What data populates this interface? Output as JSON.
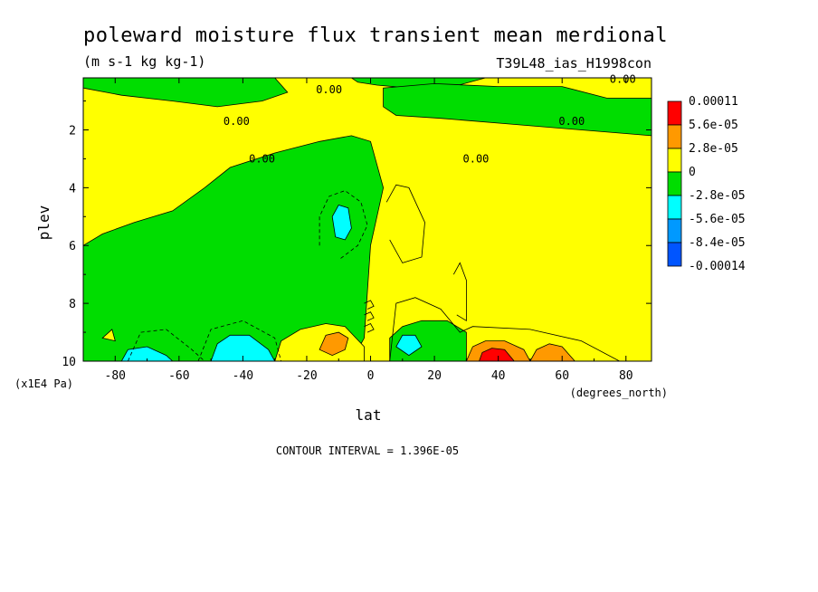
{
  "chart_data": {
    "type": "heatmap",
    "title": "poleward moisture flux transient mean merdional",
    "units": "(m s-1 kg kg-1)",
    "run_label": "T39L48_ias_H1998con",
    "xlabel": "lat",
    "x_unit": "(degrees_north)",
    "ylabel": "plev",
    "y_unit": "(x1E4 Pa)",
    "xlim": [
      -90,
      88
    ],
    "ylim": [
      0.2,
      10
    ],
    "y_inverted": true,
    "x_ticks": [
      -80,
      -60,
      -40,
      -20,
      0,
      20,
      40,
      60,
      80
    ],
    "y_ticks": [
      2,
      4,
      6,
      8,
      10
    ],
    "contour_interval_text": "CONTOUR INTERVAL = 1.396E-05",
    "contour_labels": [
      {
        "text": "0.00",
        "lat": -13,
        "plev": 0.6
      },
      {
        "text": "0.00",
        "lat": -42,
        "plev": 1.7
      },
      {
        "text": "0.00",
        "lat": 63,
        "plev": 1.7
      },
      {
        "text": "0.00",
        "lat": -34,
        "plev": 3.0
      },
      {
        "text": "0.00",
        "lat": 33,
        "plev": 3.0
      },
      {
        "text": "0.00",
        "lat": 79,
        "plev": 0.25
      }
    ],
    "legend": {
      "placement": "right",
      "levels": [
        "0.00011",
        "5.6e-05",
        "2.8e-05",
        "0",
        "-2.8e-05",
        "-5.6e-05",
        "-8.4e-05",
        "-0.00014"
      ],
      "colors": [
        "#ff0000",
        "#ff9900",
        "#ffff00",
        "#00dd00",
        "#00ffff",
        "#0099ff",
        "#0055ff"
      ]
    },
    "regions": [
      {
        "name": "upper-left-negative",
        "color": "#00dd00",
        "pts": [
          [
            -90,
            0.2
          ],
          [
            -30,
            0.2
          ],
          [
            -26,
            0.7
          ],
          [
            -34,
            1.0
          ],
          [
            -48,
            1.2
          ],
          [
            -62,
            1.0
          ],
          [
            -78,
            0.8
          ],
          [
            -90,
            0.55
          ]
        ]
      },
      {
        "name": "upper-center-negative",
        "color": "#00dd00",
        "pts": [
          [
            -6,
            0.2
          ],
          [
            36,
            0.2
          ],
          [
            26,
            0.5
          ],
          [
            12,
            0.55
          ],
          [
            2,
            0.45
          ],
          [
            -4,
            0.35
          ]
        ]
      },
      {
        "name": "upper-right-negative",
        "color": "#00dd00",
        "pts": [
          [
            4,
            1.2
          ],
          [
            4,
            0.55
          ],
          [
            20,
            0.4
          ],
          [
            40,
            0.5
          ],
          [
            60,
            0.5
          ],
          [
            74,
            0.9
          ],
          [
            88,
            0.9
          ],
          [
            88,
            2.2
          ],
          [
            66,
            2.0
          ],
          [
            44,
            1.8
          ],
          [
            22,
            1.6
          ],
          [
            8,
            1.5
          ]
        ]
      },
      {
        "name": "southern-negative",
        "color": "#00dd00",
        "pts": [
          [
            -90,
            6.0
          ],
          [
            -84,
            5.6
          ],
          [
            -74,
            5.2
          ],
          [
            -62,
            4.8
          ],
          [
            -52,
            4.0
          ],
          [
            -44,
            3.3
          ],
          [
            -30,
            2.8
          ],
          [
            -16,
            2.4
          ],
          [
            -6,
            2.2
          ],
          [
            0,
            2.4
          ],
          [
            4,
            4.0
          ],
          [
            0,
            6.0
          ],
          [
            -2,
            9.2
          ],
          [
            -6,
            10
          ],
          [
            -90,
            10
          ]
        ]
      },
      {
        "name": "positive-20S",
        "color": "#ffff00",
        "pts": [
          [
            -30,
            10
          ],
          [
            -28,
            9.3
          ],
          [
            -22,
            8.9
          ],
          [
            -14,
            8.7
          ],
          [
            -8,
            8.8
          ],
          [
            -2,
            9.5
          ],
          [
            -2,
            10
          ]
        ]
      },
      {
        "name": "negative-12N",
        "color": "#00dd00",
        "pts": [
          [
            6,
            10
          ],
          [
            6,
            9.2
          ],
          [
            10,
            8.8
          ],
          [
            16,
            8.6
          ],
          [
            24,
            8.6
          ],
          [
            30,
            9.0
          ],
          [
            30,
            10
          ]
        ]
      },
      {
        "name": "cyan-48S-35S",
        "color": "#00ffff",
        "pts": [
          [
            -50,
            10
          ],
          [
            -48,
            9.4
          ],
          [
            -44,
            9.1
          ],
          [
            -38,
            9.1
          ],
          [
            -32,
            9.6
          ],
          [
            -30,
            10
          ]
        ]
      },
      {
        "name": "cyan-70S",
        "color": "#00ffff",
        "pts": [
          [
            -78,
            10
          ],
          [
            -76,
            9.6
          ],
          [
            -70,
            9.5
          ],
          [
            -64,
            9.8
          ],
          [
            -62,
            10
          ]
        ]
      },
      {
        "name": "cyan-8S-upper",
        "color": "#00ffff",
        "pts": [
          [
            -11,
            5.7
          ],
          [
            -12,
            5.0
          ],
          [
            -10,
            4.6
          ],
          [
            -7,
            4.7
          ],
          [
            -6,
            5.4
          ],
          [
            -8,
            5.8
          ]
        ]
      },
      {
        "name": "cyan-12N-low",
        "color": "#00ffff",
        "pts": [
          [
            8,
            9.5
          ],
          [
            10,
            9.1
          ],
          [
            14,
            9.1
          ],
          [
            16,
            9.5
          ],
          [
            12,
            9.8
          ]
        ]
      },
      {
        "name": "orange-12S",
        "color": "#ff9900",
        "pts": [
          [
            -16,
            9.6
          ],
          [
            -14,
            9.1
          ],
          [
            -10,
            9.0
          ],
          [
            -7,
            9.2
          ],
          [
            -8,
            9.6
          ],
          [
            -12,
            9.8
          ]
        ]
      },
      {
        "name": "orange-38N",
        "color": "#ff9900",
        "pts": [
          [
            30,
            10
          ],
          [
            32,
            9.5
          ],
          [
            36,
            9.3
          ],
          [
            42,
            9.3
          ],
          [
            48,
            9.6
          ],
          [
            50,
            10
          ]
        ]
      },
      {
        "name": "red-38N",
        "color": "#ff0000",
        "pts": [
          [
            34,
            10
          ],
          [
            35,
            9.7
          ],
          [
            38,
            9.55
          ],
          [
            42,
            9.6
          ],
          [
            45,
            10
          ]
        ]
      },
      {
        "name": "orange-57N",
        "color": "#ff9900",
        "pts": [
          [
            50,
            10
          ],
          [
            52,
            9.6
          ],
          [
            56,
            9.4
          ],
          [
            60,
            9.5
          ],
          [
            64,
            10
          ]
        ]
      },
      {
        "name": "yellow-84S-bubble",
        "color": "#ffff00",
        "pts": [
          [
            -84,
            9.2
          ],
          [
            -81,
            8.9
          ],
          [
            -80,
            9.3
          ]
        ]
      }
    ],
    "contour_lines": [
      {
        "name": "dashed-8S",
        "dashed": true,
        "pts": [
          [
            -16,
            6.0
          ],
          [
            -16,
            5.0
          ],
          [
            -13,
            4.3
          ],
          [
            -8,
            4.1
          ],
          [
            -3,
            4.5
          ],
          [
            -1,
            5.3
          ],
          [
            -4,
            6.0
          ],
          [
            -10,
            6.5
          ]
        ]
      },
      {
        "name": "solid-10N",
        "dashed": false,
        "pts": [
          [
            5,
            4.5
          ],
          [
            8,
            3.9
          ],
          [
            12,
            4.0
          ],
          [
            17,
            5.2
          ],
          [
            16,
            6.4
          ],
          [
            10,
            6.6
          ],
          [
            6,
            5.8
          ]
        ]
      },
      {
        "name": "solid-28N",
        "dashed": false,
        "pts": [
          [
            26,
            7.0
          ],
          [
            28,
            6.6
          ],
          [
            30,
            7.2
          ],
          [
            30,
            8.6
          ],
          [
            27,
            8.4
          ]
        ]
      },
      {
        "name": "solid-arch-north",
        "dashed": false,
        "pts": [
          [
            6,
            10
          ],
          [
            8,
            8.0
          ],
          [
            14,
            7.8
          ],
          [
            22,
            8.2
          ],
          [
            28,
            9.0
          ],
          [
            32,
            8.8
          ],
          [
            50,
            8.9
          ],
          [
            66,
            9.3
          ],
          [
            78,
            10
          ]
        ]
      },
      {
        "name": "dashed-south-low",
        "dashed": true,
        "pts": [
          [
            -76,
            10
          ],
          [
            -72,
            9.0
          ],
          [
            -64,
            8.9
          ],
          [
            -56,
            9.6
          ],
          [
            -52,
            10
          ]
        ]
      },
      {
        "name": "dashed-40S-low",
        "dashed": true,
        "pts": [
          [
            -54,
            10
          ],
          [
            -50,
            8.9
          ],
          [
            -40,
            8.6
          ],
          [
            -30,
            9.2
          ],
          [
            -28,
            10
          ]
        ]
      },
      {
        "name": "eq-loop-1",
        "dashed": false,
        "pts": [
          [
            -2,
            8.0
          ],
          [
            0,
            7.9
          ],
          [
            1,
            8.1
          ],
          [
            -1,
            8.2
          ]
        ]
      },
      {
        "name": "eq-loop-2",
        "dashed": false,
        "pts": [
          [
            -2,
            8.4
          ],
          [
            0,
            8.3
          ],
          [
            1,
            8.5
          ],
          [
            -1,
            8.6
          ]
        ]
      },
      {
        "name": "eq-loop-3",
        "dashed": false,
        "pts": [
          [
            -2,
            8.8
          ],
          [
            0,
            8.7
          ],
          [
            1,
            8.9
          ],
          [
            -1,
            9.0
          ]
        ]
      }
    ]
  }
}
